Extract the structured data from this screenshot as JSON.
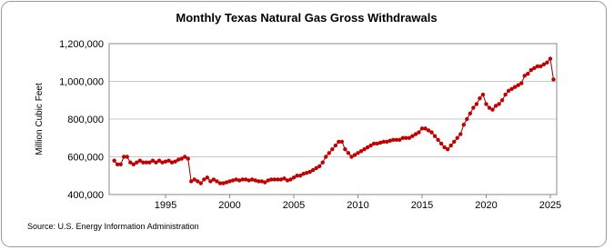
{
  "chart_data": {
    "type": "scatter-line",
    "title": "Monthly Texas Natural Gas Gross Withdrawals",
    "y_label": "Million Cubic Feet",
    "source": "Source: U.S. Energy Information Administration",
    "xlim": [
      1990.6,
      2025.5
    ],
    "xticks": [
      1995,
      2000,
      2005,
      2010,
      2015,
      2020,
      2025
    ],
    "ylim": [
      400000,
      1200000
    ],
    "yticks": [
      {
        "value": 400000,
        "label": "400,000"
      },
      {
        "value": 600000,
        "label": "600,000"
      },
      {
        "value": 800000,
        "label": "800,000"
      },
      {
        "value": 1000000,
        "label": "1,000,000"
      },
      {
        "value": 1200000,
        "label": "1,200,000"
      }
    ],
    "grid": true,
    "x": [
      1991,
      1991.25,
      1991.5,
      1991.75,
      1992,
      1992.25,
      1992.5,
      1992.75,
      1993,
      1993.25,
      1993.5,
      1993.75,
      1994,
      1994.25,
      1994.5,
      1994.75,
      1995,
      1995.25,
      1995.5,
      1995.75,
      1996,
      1996.25,
      1996.5,
      1996.75,
      1997,
      1997.25,
      1997.5,
      1997.75,
      1998,
      1998.25,
      1998.5,
      1998.75,
      1999,
      1999.25,
      1999.5,
      1999.75,
      2000,
      2000.25,
      2000.5,
      2000.75,
      2001,
      2001.25,
      2001.5,
      2001.75,
      2002,
      2002.25,
      2002.5,
      2002.75,
      2003,
      2003.25,
      2003.5,
      2003.75,
      2004,
      2004.25,
      2004.5,
      2004.75,
      2005,
      2005.25,
      2005.5,
      2005.75,
      2006,
      2006.25,
      2006.5,
      2006.75,
      2007,
      2007.25,
      2007.5,
      2007.75,
      2008,
      2008.25,
      2008.5,
      2008.75,
      2009,
      2009.25,
      2009.5,
      2009.75,
      2010,
      2010.25,
      2010.5,
      2010.75,
      2011,
      2011.25,
      2011.5,
      2011.75,
      2012,
      2012.25,
      2012.5,
      2012.75,
      2013,
      2013.25,
      2013.5,
      2013.75,
      2014,
      2014.25,
      2014.5,
      2014.75,
      2015,
      2015.25,
      2015.5,
      2015.75,
      2016,
      2016.25,
      2016.5,
      2016.75,
      2017,
      2017.25,
      2017.5,
      2017.75,
      2018,
      2018.25,
      2018.5,
      2018.75,
      2019,
      2019.25,
      2019.5,
      2019.75,
      2020,
      2020.25,
      2020.5,
      2020.75,
      2021,
      2021.25,
      2021.5,
      2021.75,
      2022,
      2022.25,
      2022.5,
      2022.75,
      2023,
      2023.25,
      2023.5,
      2023.75,
      2024,
      2024.25,
      2024.5,
      2024.75,
      2025,
      2025.25
    ],
    "series": [
      {
        "color": "#c00000",
        "values": [
          580000,
          560000,
          560000,
          600000,
          600000,
          570000,
          560000,
          570000,
          580000,
          570000,
          570000,
          570000,
          580000,
          570000,
          580000,
          570000,
          575000,
          580000,
          570000,
          575000,
          585000,
          590000,
          600000,
          590000,
          470000,
          480000,
          470000,
          460000,
          480000,
          490000,
          470000,
          480000,
          470000,
          460000,
          460000,
          465000,
          470000,
          475000,
          480000,
          475000,
          480000,
          480000,
          475000,
          480000,
          475000,
          470000,
          470000,
          465000,
          475000,
          480000,
          480000,
          480000,
          480000,
          485000,
          475000,
          480000,
          490000,
          500000,
          500000,
          510000,
          515000,
          520000,
          530000,
          540000,
          550000,
          570000,
          600000,
          620000,
          640000,
          660000,
          680000,
          680000,
          640000,
          620000,
          600000,
          610000,
          620000,
          630000,
          640000,
          650000,
          660000,
          670000,
          670000,
          675000,
          680000,
          680000,
          685000,
          690000,
          690000,
          690000,
          700000,
          700000,
          700000,
          710000,
          720000,
          730000,
          750000,
          750000,
          740000,
          730000,
          710000,
          690000,
          670000,
          650000,
          640000,
          660000,
          680000,
          700000,
          720000,
          770000,
          800000,
          830000,
          860000,
          880000,
          910000,
          930000,
          880000,
          860000,
          850000,
          870000,
          880000,
          900000,
          930000,
          950000,
          960000,
          970000,
          980000,
          990000,
          1030000,
          1040000,
          1060000,
          1070000,
          1080000,
          1080000,
          1090000,
          1100000,
          1120000,
          1010000
        ]
      }
    ]
  }
}
